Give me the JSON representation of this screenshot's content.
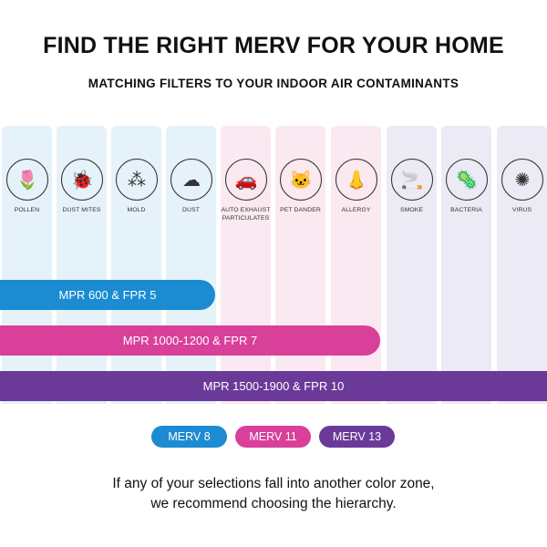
{
  "header": {
    "title": "FIND THE RIGHT MERV FOR YOUR HOME",
    "subtitle": "MATCHING FILTERS TO YOUR INDOOR AIR CONTAMINANTS"
  },
  "colors": {
    "merv8": "#1b8bd2",
    "merv11": "#d8409a",
    "merv13": "#6b3a99",
    "zone8": "#e5f2fa",
    "zone11": "#fbe9f1",
    "zone13": "#eceaf5"
  },
  "contaminants": [
    {
      "label": "POLLEN",
      "icon": "flower-icon",
      "glyph": "🌷",
      "zone": "merv8"
    },
    {
      "label": "DUST MITES",
      "icon": "bug-icon",
      "glyph": "🐞",
      "zone": "merv8"
    },
    {
      "label": "MOLD",
      "icon": "mold-icon",
      "glyph": "⁂",
      "zone": "merv8"
    },
    {
      "label": "DUST",
      "icon": "dust-icon",
      "glyph": "☁",
      "zone": "merv8"
    },
    {
      "label": "AUTO EXHAUST PARTICULATES",
      "icon": "car-exhaust-icon",
      "glyph": "🚗",
      "zone": "merv11"
    },
    {
      "label": "PET DANDER",
      "icon": "cat-icon",
      "glyph": "🐱",
      "zone": "merv11"
    },
    {
      "label": "ALLERGY",
      "icon": "nose-icon",
      "glyph": "👃",
      "zone": "merv11"
    },
    {
      "label": "SMOKE",
      "icon": "cigarette-icon",
      "glyph": "🚬",
      "zone": "merv13"
    },
    {
      "label": "BACTERIA",
      "icon": "bacteria-icon",
      "glyph": "🦠",
      "zone": "merv13"
    },
    {
      "label": "VIRUS",
      "icon": "virus-icon",
      "glyph": "✺",
      "zone": "merv13"
    }
  ],
  "bars": [
    {
      "label": "MPR 600 & FPR 5",
      "covers": 4,
      "color": "merv8"
    },
    {
      "label": "MPR 1000-1200 & FPR 7",
      "covers": 7,
      "color": "merv11"
    },
    {
      "label": "MPR 1500-1900 & FPR 10",
      "covers": 10,
      "color": "merv13"
    }
  ],
  "legend": [
    {
      "label": "MERV 8",
      "color": "merv8"
    },
    {
      "label": "MERV 11",
      "color": "merv11"
    },
    {
      "label": "MERV 13",
      "color": "merv13"
    }
  ],
  "footer": {
    "line1": "If any of your selections fall into another color zone,",
    "line2": "we recommend choosing the hierarchy."
  }
}
